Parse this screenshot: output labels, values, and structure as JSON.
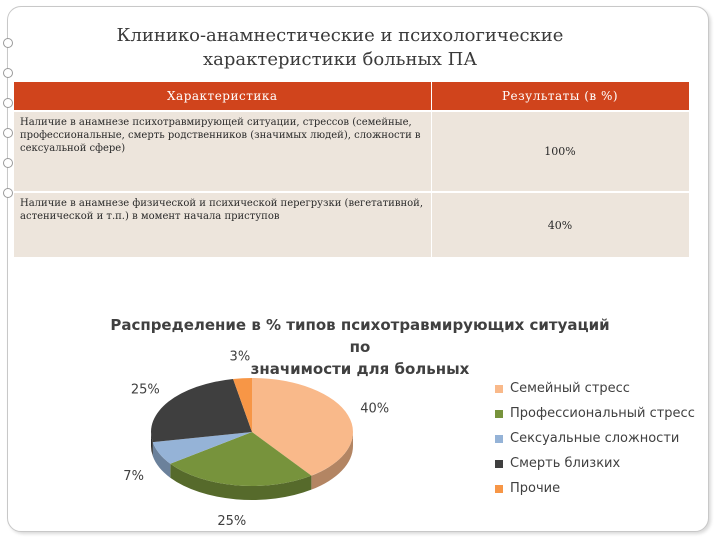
{
  "slide": {
    "title_line1": "Клинико-анамнестические и психологические",
    "title_line2": "характеристики больных ПА"
  },
  "table": {
    "headers": [
      "Характеристика",
      "Результаты (в %)"
    ],
    "rows": [
      {
        "characteristic": "Наличие в анамнезе психотравмирующей ситуации, стрессов (семейные, профессиональные, смерть родственников (значимых людей), сложности в сексуальной сфере)",
        "result": "100%"
      },
      {
        "characteristic": "Наличие в анамнезе физической и психической перегрузки (вегетативной, астенической и т.п.) в момент начала приступов",
        "result": "40%"
      }
    ]
  },
  "chart_data": {
    "type": "pie",
    "title": "Распределение в % типов психотравмирующих ситуаций по значимости для больных",
    "title_line1": "Распределение в % типов психотравмирующих ситуаций по",
    "title_line2": "значимости для больных",
    "legend_position": "right",
    "slices": [
      {
        "label": "Семейный стресс",
        "value": 40,
        "value_label": "40%",
        "color": "#f9b98a"
      },
      {
        "label": "Профессиональный стресс",
        "value": 25,
        "value_label": "25%",
        "color": "#77933c"
      },
      {
        "label": "Сексуальные сложности",
        "value": 7,
        "value_label": "7%",
        "color": "#95b3d7"
      },
      {
        "label": "Смерть близких",
        "value": 25,
        "value_label": "25%",
        "color": "#3f3f3f"
      },
      {
        "label": "Прочие",
        "value": 3,
        "value_label": "3%",
        "color": "#f79646"
      }
    ]
  }
}
